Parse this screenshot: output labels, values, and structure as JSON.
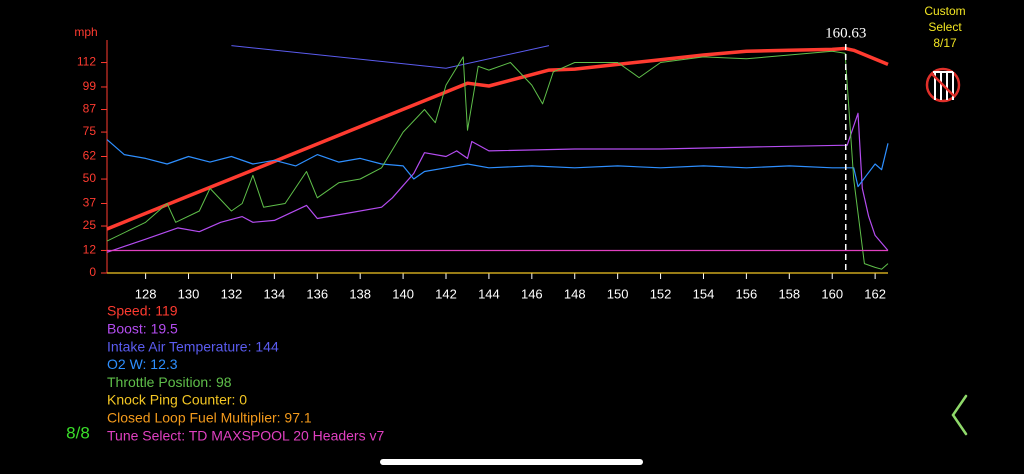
{
  "chart_data": {
    "type": "line",
    "y_label": "mph",
    "xlim": [
      126.2,
      162.6
    ],
    "xticks": [
      128,
      130,
      132,
      134,
      136,
      138,
      140,
      142,
      144,
      146,
      148,
      150,
      152,
      154,
      156,
      158,
      160,
      162
    ],
    "ylim": [
      0,
      124
    ],
    "yticks": [
      0,
      12,
      25,
      37,
      50,
      62,
      75,
      87,
      99,
      112
    ],
    "cursor": 160.63,
    "series": [
      {
        "name": "Speed: 119",
        "color": "#ff3b30",
        "width": 3.5,
        "x": [
          126.2,
          130,
          134,
          138,
          142,
          143,
          144,
          146.8,
          148,
          150,
          152,
          154,
          156,
          158,
          160,
          160.6,
          161,
          162.6
        ],
        "values": [
          23.4,
          41,
          59.4,
          77.9,
          96.3,
          101,
          99.5,
          108,
          108.5,
          111,
          113.5,
          116,
          118,
          118.5,
          119,
          119.5,
          118.5,
          111
        ]
      },
      {
        "name": "Boost: 19.5",
        "color": "#b44cf0",
        "width": 1.2,
        "x": [
          126.2,
          128,
          129.5,
          130.5,
          131.5,
          132.5,
          133,
          134,
          135.5,
          136,
          137.5,
          139,
          139.5,
          140.5,
          141,
          142,
          142.5,
          143,
          143.2,
          144,
          148,
          152,
          156,
          160.7,
          161.2,
          161.4,
          161.7,
          162,
          162.6
        ],
        "values": [
          11,
          18,
          24,
          22,
          27,
          30,
          27,
          28,
          36,
          29,
          32,
          35,
          40,
          53,
          64,
          62,
          65,
          61,
          70,
          65,
          66,
          66,
          67,
          68,
          85,
          45,
          30,
          20,
          12
        ]
      },
      {
        "name": "Intake Air Temperature: 144",
        "color": "#5b5cf0",
        "width": 1,
        "x": [
          132,
          142,
          146.8
        ],
        "values": [
          121,
          109,
          121
        ]
      },
      {
        "name": "O2 W: 12.3",
        "color": "#2e8fff",
        "width": 1.2,
        "x": [
          126.2,
          127,
          128,
          129,
          130,
          131,
          132,
          133,
          134,
          135,
          136,
          137,
          138,
          139,
          140,
          140.5,
          141,
          142,
          143,
          144,
          146,
          148,
          150,
          152,
          154,
          156,
          158,
          160,
          161,
          161.2,
          161.6,
          162,
          162.3,
          162.6
        ],
        "values": [
          71,
          63,
          61,
          58,
          62,
          59,
          62,
          58,
          60,
          57,
          63,
          59,
          61,
          58,
          57,
          50,
          54,
          56,
          58,
          56,
          57,
          56,
          57,
          56,
          57,
          56,
          57,
          56,
          56,
          46,
          52,
          58,
          55,
          69
        ]
      },
      {
        "name": "Throttle Position: 98",
        "color": "#5fbf4a",
        "width": 1,
        "x": [
          126.2,
          128,
          129,
          129.4,
          130.5,
          131,
          132,
          132.5,
          133,
          133.5,
          134.5,
          135.5,
          136,
          137,
          138,
          139,
          140,
          141,
          141.5,
          142,
          142.8,
          143,
          143.5,
          144,
          145,
          146,
          146.5,
          147,
          148,
          150,
          151,
          152,
          154,
          156,
          158,
          160,
          160.6,
          161,
          161.5,
          162,
          162.3,
          162.6
        ],
        "values": [
          17,
          27,
          37,
          27,
          33,
          45,
          33,
          37,
          52,
          35,
          37,
          54,
          40,
          48,
          50,
          56,
          75,
          87,
          80,
          100,
          115,
          76,
          110,
          108,
          112,
          100,
          90,
          107,
          112,
          112,
          104,
          112,
          115,
          114,
          116,
          118,
          117,
          50,
          5,
          3,
          2,
          5
        ]
      },
      {
        "name": "Knock Ping Counter: 0",
        "color": "#f3c623",
        "width": 1.2,
        "x": [
          126.2,
          162.6
        ],
        "values": [
          0,
          0
        ]
      },
      {
        "name": "Closed Loop Fuel Multiplier: 97.1",
        "color": "#f39a1c",
        "width": 1,
        "x": [],
        "values": []
      },
      {
        "name": "Tune Select: TD MAXSPOOL 20 Headers v7",
        "color": "#e040c0",
        "width": 1.2,
        "x": [
          126.2,
          162.6
        ],
        "values": [
          12,
          12
        ]
      }
    ]
  },
  "custom_select": [
    "Custom",
    "Select",
    "8/17"
  ],
  "page_indicator": "8/8"
}
